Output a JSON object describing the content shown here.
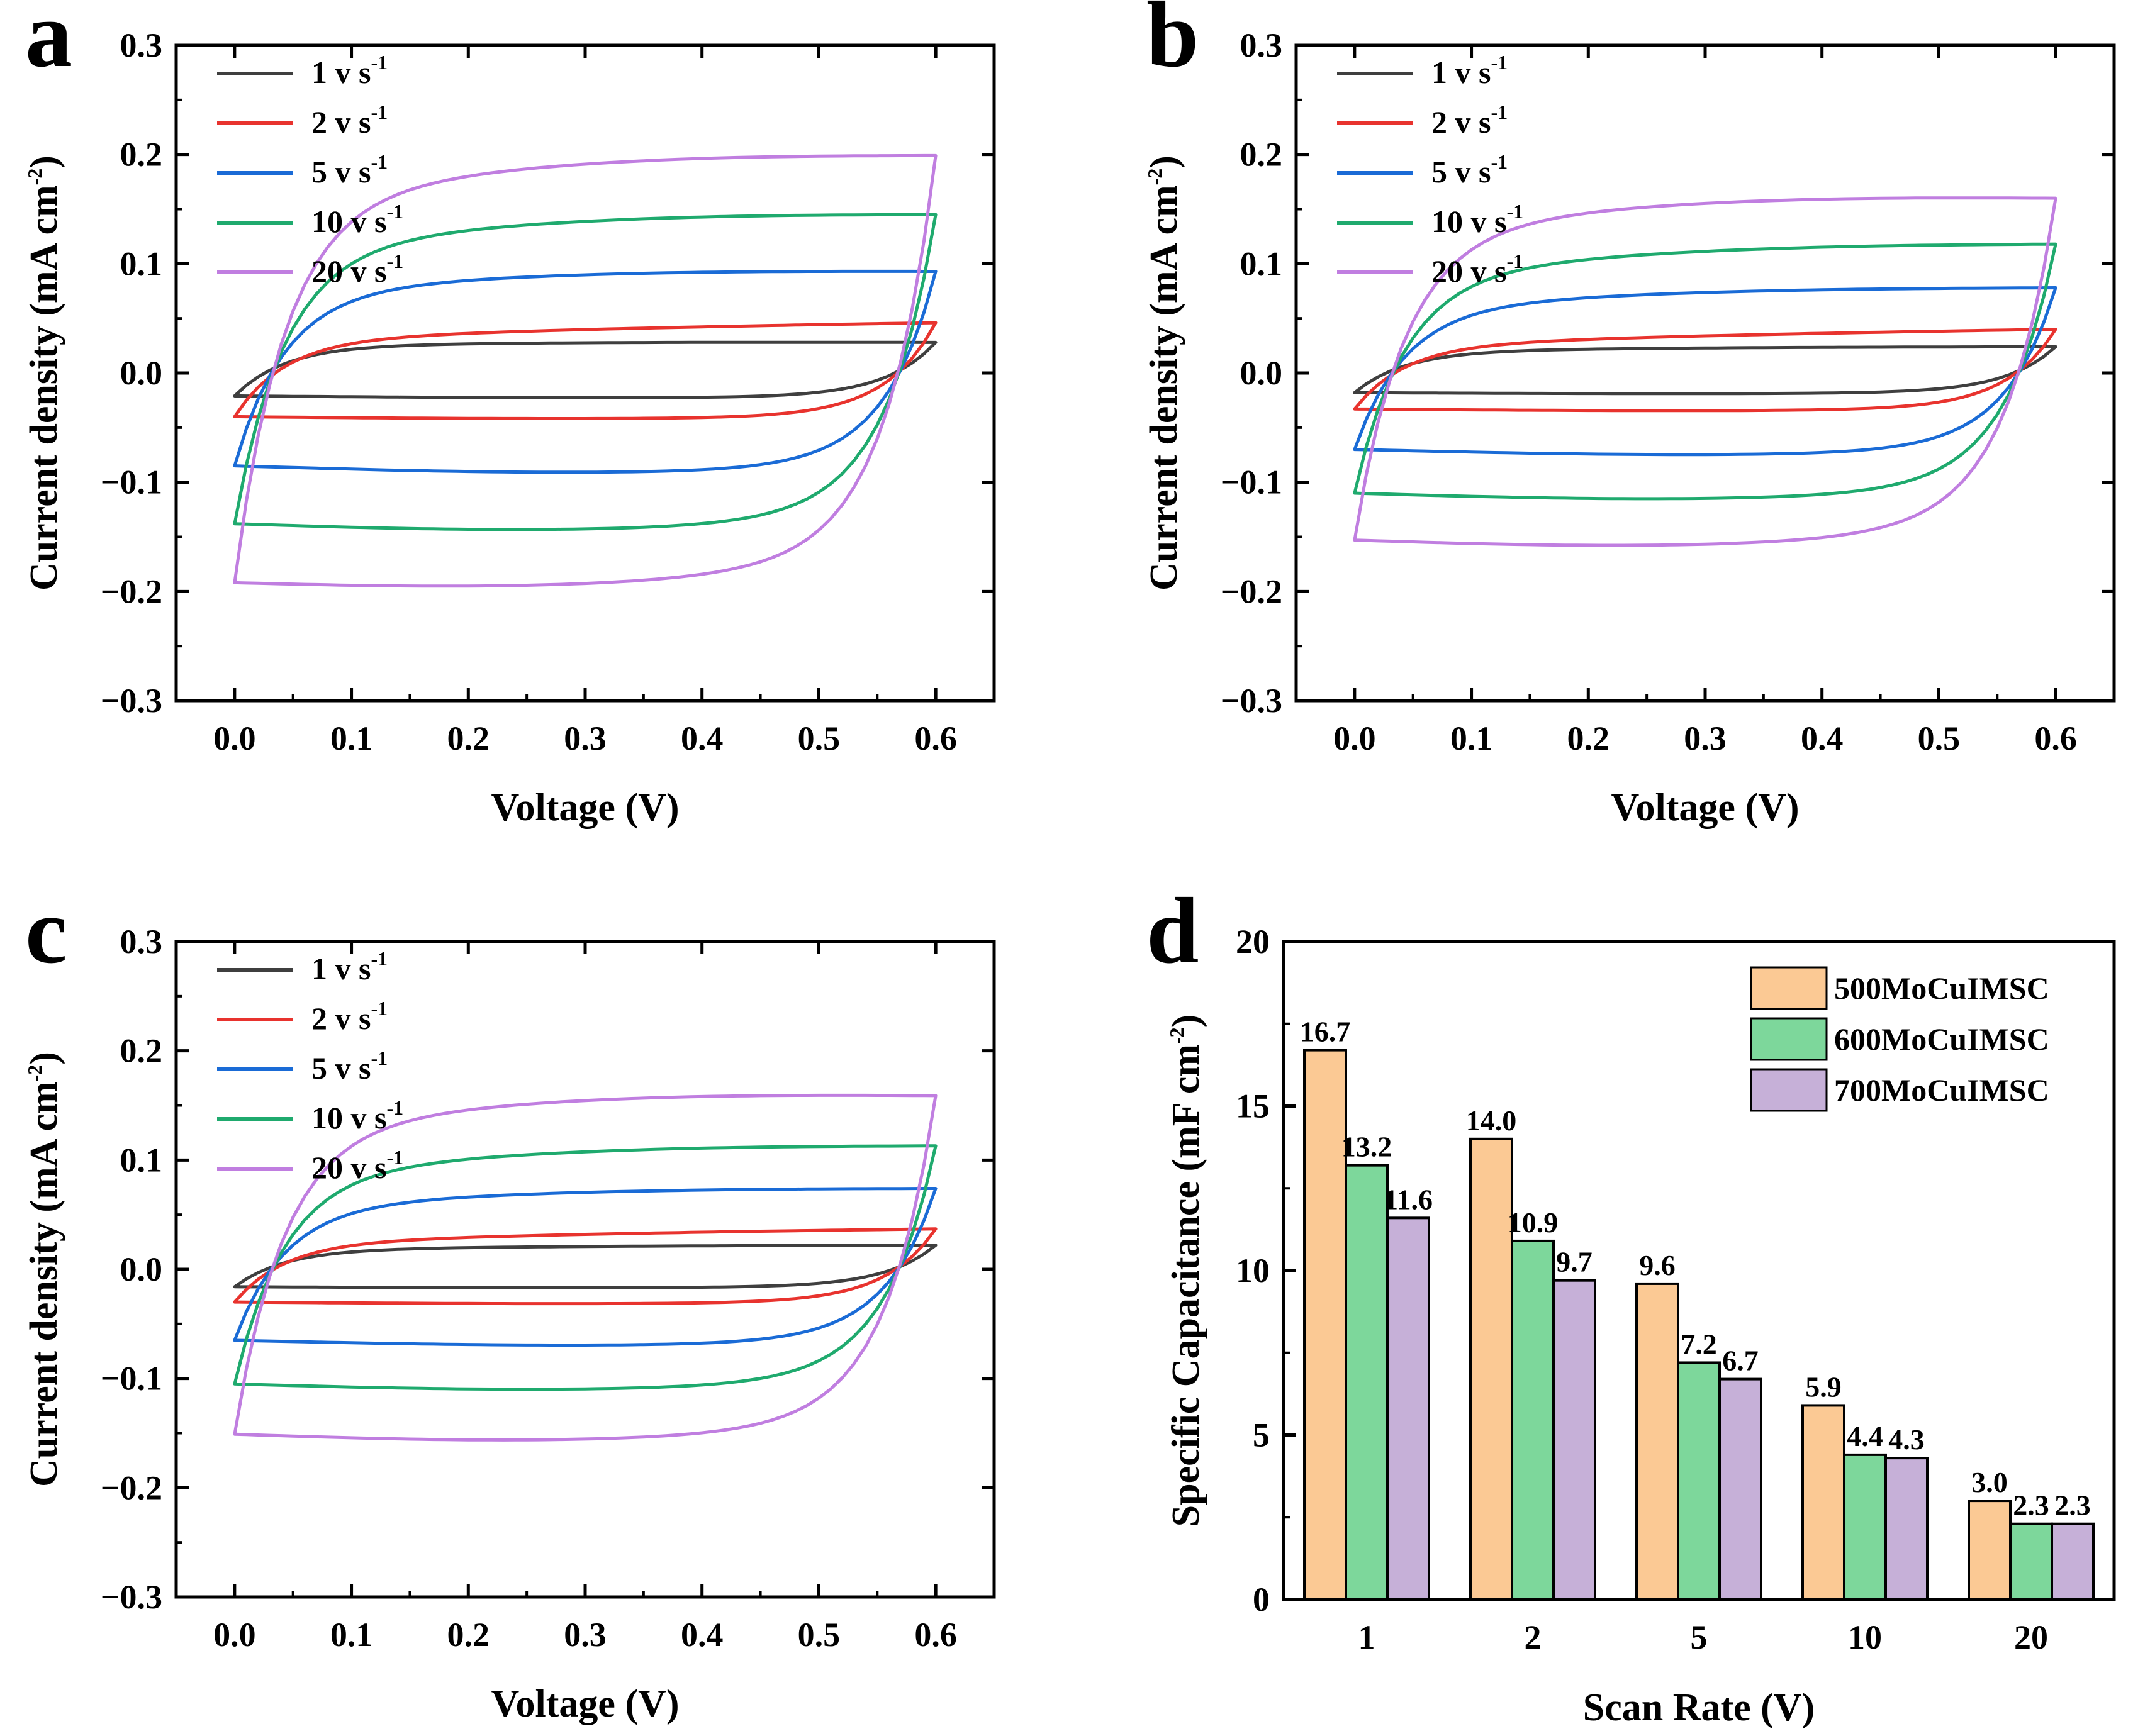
{
  "chart_data": [
    {
      "panel": "a",
      "type": "line",
      "xlabel": "Voltage (V)",
      "ylabel": "Current density (mA cm-2)",
      "ylabel_main": "Current density (mA cm",
      "ylabel_sup": "-2",
      "ylabel_tail": ")",
      "xlim": [
        -0.05,
        0.65
      ],
      "ylim": [
        -0.3,
        0.3
      ],
      "xticks": [
        "0.0",
        "0.1",
        "0.2",
        "0.3",
        "0.4",
        "0.5",
        "0.6"
      ],
      "yticks": [
        "0.3",
        "0.2",
        "0.1",
        "0.0",
        "−0.1",
        "−0.2",
        "−0.3"
      ],
      "legend_position": "top-left",
      "series": [
        {
          "name": "1 v s-1",
          "label": "1 v s",
          "sup": "-1",
          "color": "#3f3f3f",
          "upper_end": 0.028,
          "lower_start": -0.021,
          "upper_curve": 0.025,
          "lower_curve": -0.022,
          "bulge": 0.004
        },
        {
          "name": "2 v s-1",
          "label": "2 v s",
          "sup": "-1",
          "color": "#e8332e",
          "upper_end": 0.046,
          "lower_start": -0.04,
          "upper_curve": 0.03,
          "lower_curve": -0.04,
          "bulge": 0.006
        },
        {
          "name": "5 v s-1",
          "label": "5 v s",
          "sup": "-1",
          "color": "#1a6bd6",
          "upper_end": 0.093,
          "lower_start": -0.085,
          "upper_curve": 0.075,
          "lower_curve": -0.085,
          "bulge": 0.02
        },
        {
          "name": "10 v s-1",
          "label": "10 v s",
          "sup": "-1",
          "color": "#1faa6e",
          "upper_end": 0.145,
          "lower_start": -0.138,
          "upper_curve": 0.115,
          "lower_curve": -0.13,
          "bulge": 0.03
        },
        {
          "name": "20 v s-1",
          "label": "20 v s",
          "sup": "-1",
          "color": "#c07ee0",
          "upper_end": 0.199,
          "lower_start": -0.192,
          "upper_curve": 0.16,
          "lower_curve": -0.17,
          "bulge": 0.04
        }
      ]
    },
    {
      "panel": "b",
      "type": "line",
      "xlabel": "Voltage (V)",
      "ylabel": "Current density (mA cm-2)",
      "ylabel_main": "Current density (mA cm",
      "ylabel_sup": "-2",
      "ylabel_tail": ")",
      "xlim": [
        -0.05,
        0.65
      ],
      "ylim": [
        -0.3,
        0.3
      ],
      "xticks": [
        "0.0",
        "0.1",
        "0.2",
        "0.3",
        "0.4",
        "0.5",
        "0.6"
      ],
      "yticks": [
        "0.3",
        "0.2",
        "0.1",
        "0.0",
        "−0.1",
        "−0.2",
        "−0.3"
      ],
      "legend_position": "top-left",
      "series": [
        {
          "name": "1 v s-1",
          "label": "1 v s",
          "sup": "-1",
          "color": "#3f3f3f",
          "upper_end": 0.024,
          "lower_start": -0.018,
          "upper_curve": 0.02,
          "lower_curve": -0.018,
          "bulge": 0.003
        },
        {
          "name": "2 v s-1",
          "label": "2 v s",
          "sup": "-1",
          "color": "#e8332e",
          "upper_end": 0.04,
          "lower_start": -0.033,
          "upper_curve": 0.025,
          "lower_curve": -0.033,
          "bulge": 0.005
        },
        {
          "name": "5 v s-1",
          "label": "5 v s",
          "sup": "-1",
          "color": "#1a6bd6",
          "upper_end": 0.078,
          "lower_start": -0.07,
          "upper_curve": 0.06,
          "lower_curve": -0.07,
          "bulge": 0.016
        },
        {
          "name": "10 v s-1",
          "label": "10 v s",
          "sup": "-1",
          "color": "#1faa6e",
          "upper_end": 0.118,
          "lower_start": -0.11,
          "upper_curve": 0.09,
          "lower_curve": -0.105,
          "bulge": 0.025
        },
        {
          "name": "20 v s-1",
          "label": "20 v s",
          "sup": "-1",
          "color": "#c07ee0",
          "upper_end": 0.16,
          "lower_start": -0.153,
          "upper_curve": 0.13,
          "lower_curve": -0.14,
          "bulge": 0.035
        }
      ]
    },
    {
      "panel": "c",
      "type": "line",
      "xlabel": "Voltage (V)",
      "ylabel": "Current density (mA cm-2)",
      "ylabel_main": "Current density (mA cm",
      "ylabel_sup": "-2",
      "ylabel_tail": ")",
      "xlim": [
        -0.05,
        0.65
      ],
      "ylim": [
        -0.3,
        0.3
      ],
      "xticks": [
        "0.0",
        "0.1",
        "0.2",
        "0.3",
        "0.4",
        "0.5",
        "0.6"
      ],
      "yticks": [
        "0.3",
        "0.2",
        "0.1",
        "0.0",
        "−0.1",
        "−0.2",
        "−0.3"
      ],
      "legend_position": "top-left",
      "series": [
        {
          "name": "1 v s-1",
          "label": "1 v s",
          "sup": "-1",
          "color": "#3f3f3f",
          "upper_end": 0.022,
          "lower_start": -0.016,
          "upper_curve": 0.018,
          "lower_curve": -0.016,
          "bulge": 0.003
        },
        {
          "name": "2 v s-1",
          "label": "2 v s",
          "sup": "-1",
          "color": "#e8332e",
          "upper_end": 0.037,
          "lower_start": -0.03,
          "upper_curve": 0.024,
          "lower_curve": -0.03,
          "bulge": 0.005
        },
        {
          "name": "5 v s-1",
          "label": "5 v s",
          "sup": "-1",
          "color": "#1a6bd6",
          "upper_end": 0.074,
          "lower_start": -0.065,
          "upper_curve": 0.058,
          "lower_curve": -0.065,
          "bulge": 0.015
        },
        {
          "name": "10 v s-1",
          "label": "10 v s",
          "sup": "-1",
          "color": "#1faa6e",
          "upper_end": 0.113,
          "lower_start": -0.105,
          "upper_curve": 0.088,
          "lower_curve": -0.1,
          "bulge": 0.024
        },
        {
          "name": "20 v s-1",
          "label": "20 v s",
          "sup": "-1",
          "color": "#c07ee0",
          "upper_end": 0.159,
          "lower_start": -0.151,
          "upper_curve": 0.13,
          "lower_curve": -0.14,
          "bulge": 0.034
        }
      ]
    },
    {
      "panel": "d",
      "type": "bar",
      "xlabel": "Scan Rate (V)",
      "ylabel": "Specific Capacitance (mF cm-2)",
      "ylabel_main": "Specific Capacitance (mF cm",
      "ylabel_sup": "-2",
      "ylabel_tail": ")",
      "ylim": [
        0,
        20
      ],
      "yticks": [
        "20",
        "15",
        "10",
        "5",
        "0"
      ],
      "categories": [
        "1",
        "2",
        "5",
        "10",
        "20"
      ],
      "legend_position": "top-right",
      "series": [
        {
          "name": "500MoCuIMSC",
          "color": "#fbc994",
          "values": [
            16.7,
            14.0,
            9.6,
            5.9,
            3.0
          ],
          "labels": [
            "16.7",
            "14.0",
            "9.6",
            "5.9",
            "3.0"
          ]
        },
        {
          "name": "600MoCuIMSC",
          "color": "#7dd79b",
          "values": [
            13.2,
            10.9,
            7.2,
            4.4,
            2.3
          ],
          "labels": [
            "13.2",
            "10.9",
            "7.2",
            "4.4",
            "2.3"
          ]
        },
        {
          "name": "700MoCuIMSC",
          "color": "#c6b0d8",
          "values": [
            11.6,
            9.7,
            6.7,
            4.3,
            2.3
          ],
          "labels": [
            "11.6",
            "9.7",
            "6.7",
            "4.3",
            "2.3"
          ]
        }
      ]
    }
  ]
}
